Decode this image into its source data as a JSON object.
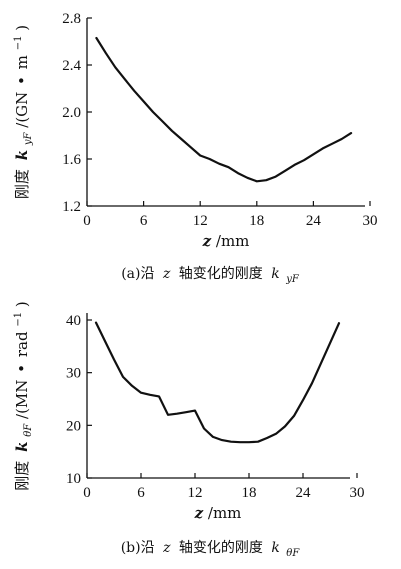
{
  "chart_data": [
    {
      "type": "line",
      "xlabel": "z/mm",
      "ylabel": "刚度 k_yF /(GN·m⁻¹)",
      "caption": "(a)沿 z 轴变化的刚度 k_yF",
      "xlim": [
        0,
        30
      ],
      "ylim": [
        1.2,
        2.8
      ],
      "xticks": [
        "0",
        "6",
        "12",
        "18",
        "24",
        "30"
      ],
      "yticks": [
        "1.2",
        "1.6",
        "2.0",
        "2.4",
        "2.8"
      ],
      "grid": false,
      "series": [
        {
          "x": [
            1,
            2,
            3,
            4,
            5,
            6,
            7,
            8,
            9,
            10,
            11,
            12,
            13,
            14,
            15,
            16,
            17,
            18,
            19,
            20,
            21,
            22,
            23,
            24,
            25,
            26,
            27,
            28
          ],
          "values": [
            2.63,
            2.5,
            2.38,
            2.28,
            2.18,
            2.09,
            2.0,
            1.92,
            1.84,
            1.77,
            1.7,
            1.63,
            1.6,
            1.56,
            1.53,
            1.48,
            1.44,
            1.41,
            1.42,
            1.45,
            1.5,
            1.55,
            1.59,
            1.64,
            1.69,
            1.73,
            1.77,
            1.82
          ]
        }
      ]
    },
    {
      "type": "line",
      "xlabel": "z/mm",
      "ylabel": "刚度 k_θF /(MN·rad⁻¹)",
      "caption": "(b)沿 z 轴变化的刚度 k_θF",
      "xlim": [
        0,
        30
      ],
      "ylim": [
        10,
        40
      ],
      "xticks": [
        "0",
        "6",
        "12",
        "18",
        "24",
        "30"
      ],
      "yticks": [
        "10",
        "20",
        "30",
        "40"
      ],
      "grid": false,
      "series": [
        {
          "x": [
            1,
            2,
            3,
            4,
            5,
            6,
            7,
            8,
            9,
            10,
            11,
            12,
            13,
            14,
            15,
            16,
            17,
            18,
            19,
            20,
            21,
            22,
            23,
            24,
            25,
            26,
            27,
            28
          ],
          "values": [
            39.5,
            36.0,
            32.5,
            29.2,
            27.5,
            26.2,
            25.8,
            25.5,
            22.0,
            22.2,
            22.5,
            22.8,
            19.4,
            17.8,
            17.2,
            16.9,
            16.8,
            16.8,
            16.9,
            17.6,
            18.4,
            19.8,
            21.8,
            24.8,
            28.0,
            31.8,
            35.6,
            39.4
          ]
        }
      ]
    }
  ],
  "labels": {
    "a": {
      "ylabel_prefix": "刚度",
      "ylabel_k": "k",
      "ylabel_sub": "yF",
      "ylabel_unit_open": "/(GN",
      "ylabel_dot": "•",
      "ylabel_unit_m": "m",
      "ylabel_sup": "−1",
      "ylabel_close": ")",
      "xlabel_var": "z",
      "xlabel_unit": "/mm",
      "caption_prefix": "(a)沿",
      "caption_var": "z",
      "caption_mid": "轴变化的刚度",
      "caption_k": "k",
      "caption_sub": "yF"
    },
    "b": {
      "ylabel_prefix": "刚度",
      "ylabel_k": "k",
      "ylabel_sub": "θF",
      "ylabel_unit_open": "/(MN",
      "ylabel_dot": "•",
      "ylabel_unit_m": "rad",
      "ylabel_sup": "−1",
      "ylabel_close": ")",
      "xlabel_var": "z",
      "xlabel_unit": "/mm",
      "caption_prefix": "(b)沿",
      "caption_var": "z",
      "caption_mid": "轴变化的刚度",
      "caption_k": "k",
      "caption_sub": "θF"
    }
  }
}
